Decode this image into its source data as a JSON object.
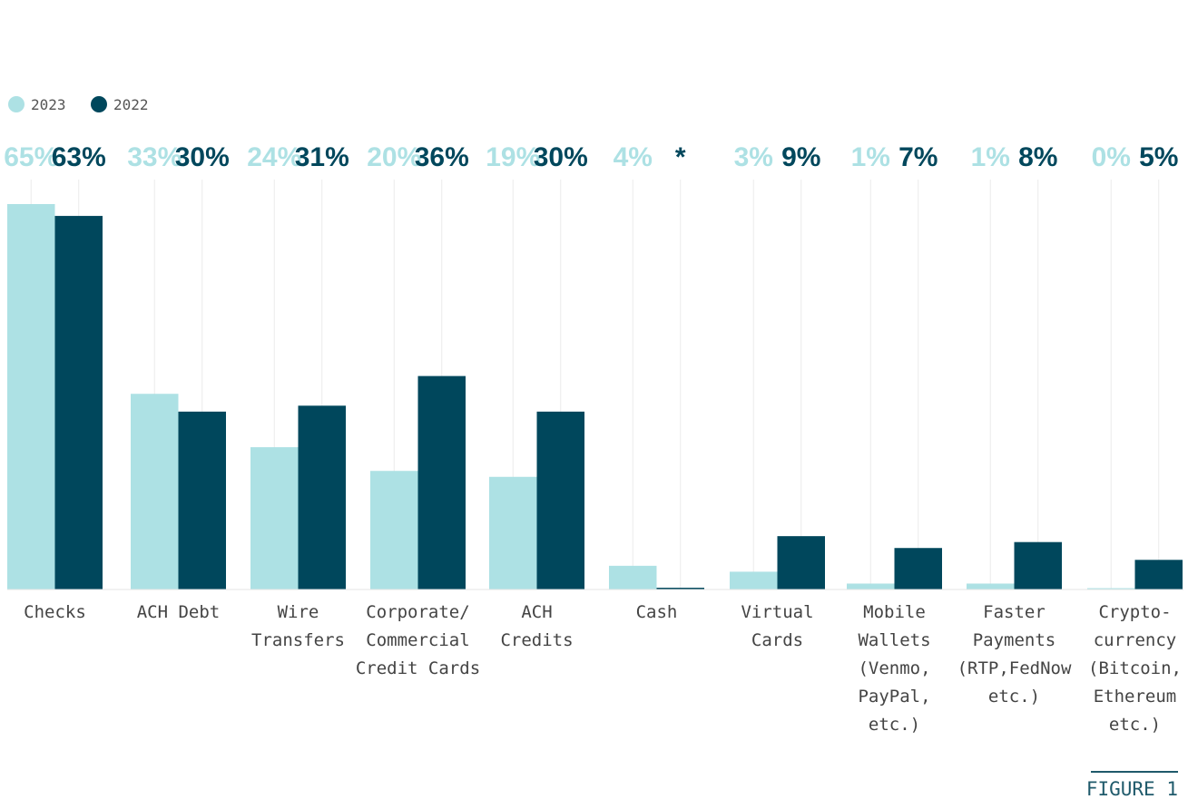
{
  "chart_data": {
    "type": "bar",
    "categories": [
      [
        "Checks"
      ],
      [
        "ACH Debt"
      ],
      [
        "Wire",
        "Transfers"
      ],
      [
        "Corporate/",
        "Commercial",
        "Credit Cards"
      ],
      [
        "ACH",
        "Credits"
      ],
      [
        "Cash"
      ],
      [
        "Virtual",
        "Cards"
      ],
      [
        "Mobile",
        "Wallets",
        "(Venmo,",
        "PayPal,",
        "etc.)"
      ],
      [
        "Faster",
        "Payments",
        "(RTP,FedNow",
        "etc.)"
      ],
      [
        "Crypto-",
        "currency",
        "(Bitcoin,",
        "Ethereum",
        "etc.)"
      ]
    ],
    "series": [
      {
        "name": "2023",
        "color": "#ade1e4",
        "values": [
          65,
          33,
          24,
          20,
          19,
          4,
          3,
          1,
          1,
          0
        ],
        "labels": [
          "65%",
          "33%",
          "24%",
          "20%",
          "19%",
          "4%",
          "3%",
          "1%",
          "1%",
          "0%"
        ]
      },
      {
        "name": "2022",
        "color": "#00475c",
        "values": [
          63,
          30,
          31,
          36,
          30,
          0.3,
          9,
          7,
          8,
          5
        ],
        "labels": [
          "63%",
          "30%",
          "31%",
          "36%",
          "30%",
          "*",
          "9%",
          "7%",
          "8%",
          "5%"
        ]
      }
    ],
    "legend_position": "top-left",
    "ylim": [
      0,
      65
    ],
    "grid": "vertical"
  },
  "figure_label": "FIGURE 1"
}
